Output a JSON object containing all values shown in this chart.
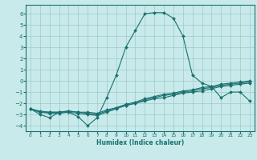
{
  "xlabel": "Humidex (Indice chaleur)",
  "bg_color": "#c8eaea",
  "grid_color": "#a0c8c8",
  "line_color": "#1a7070",
  "xlim": [
    -0.5,
    23.5
  ],
  "ylim": [
    -4.5,
    6.8
  ],
  "xticks": [
    0,
    1,
    2,
    3,
    4,
    5,
    6,
    7,
    8,
    9,
    10,
    11,
    12,
    13,
    14,
    15,
    16,
    17,
    18,
    19,
    20,
    21,
    22,
    23
  ],
  "yticks": [
    -4,
    -3,
    -2,
    -1,
    0,
    1,
    2,
    3,
    4,
    5,
    6
  ],
  "lines": [
    {
      "x": [
        0,
        1,
        2,
        3,
        4,
        5,
        6,
        7,
        8,
        9,
        10,
        11,
        12,
        13,
        14,
        15,
        16,
        17,
        18,
        19,
        20,
        21,
        22,
        23
      ],
      "y": [
        -2.5,
        -3.0,
        -3.3,
        -2.8,
        -2.8,
        -3.2,
        -4.0,
        -3.3,
        -1.5,
        0.5,
        3.0,
        4.5,
        6.0,
        6.1,
        6.1,
        5.6,
        4.0,
        0.5,
        -0.2,
        -0.5,
        -1.5,
        -1.0,
        -1.0,
        -1.8
      ]
    },
    {
      "x": [
        0,
        1,
        2,
        3,
        4,
        5,
        6,
        7,
        8,
        9,
        10,
        11,
        12,
        13,
        14,
        15,
        16,
        17,
        18,
        19,
        20,
        21,
        22,
        23
      ],
      "y": [
        -2.5,
        -2.8,
        -2.8,
        -2.8,
        -2.7,
        -2.8,
        -2.8,
        -2.9,
        -2.6,
        -2.4,
        -2.2,
        -2.0,
        -1.8,
        -1.6,
        -1.5,
        -1.3,
        -1.1,
        -1.0,
        -0.9,
        -0.7,
        -0.5,
        -0.4,
        -0.3,
        -0.2
      ]
    },
    {
      "x": [
        0,
        1,
        2,
        3,
        4,
        5,
        6,
        7,
        8,
        9,
        10,
        11,
        12,
        13,
        14,
        15,
        16,
        17,
        18,
        19,
        20,
        21,
        22,
        23
      ],
      "y": [
        -2.5,
        -2.7,
        -2.8,
        -2.8,
        -2.7,
        -2.8,
        -2.9,
        -3.0,
        -2.7,
        -2.4,
        -2.1,
        -1.9,
        -1.6,
        -1.4,
        -1.2,
        -1.1,
        -0.9,
        -0.8,
        -0.6,
        -0.5,
        -0.3,
        -0.2,
        -0.1,
        0.0
      ]
    },
    {
      "x": [
        0,
        1,
        2,
        3,
        4,
        5,
        6,
        7,
        8,
        9,
        10,
        11,
        12,
        13,
        14,
        15,
        16,
        17,
        18,
        19,
        20,
        21,
        22,
        23
      ],
      "y": [
        -2.5,
        -2.8,
        -2.9,
        -2.9,
        -2.8,
        -2.9,
        -3.0,
        -3.1,
        -2.8,
        -2.5,
        -2.2,
        -2.0,
        -1.7,
        -1.5,
        -1.3,
        -1.2,
        -1.0,
        -0.9,
        -0.7,
        -0.6,
        -0.4,
        -0.3,
        -0.2,
        -0.1
      ]
    }
  ]
}
